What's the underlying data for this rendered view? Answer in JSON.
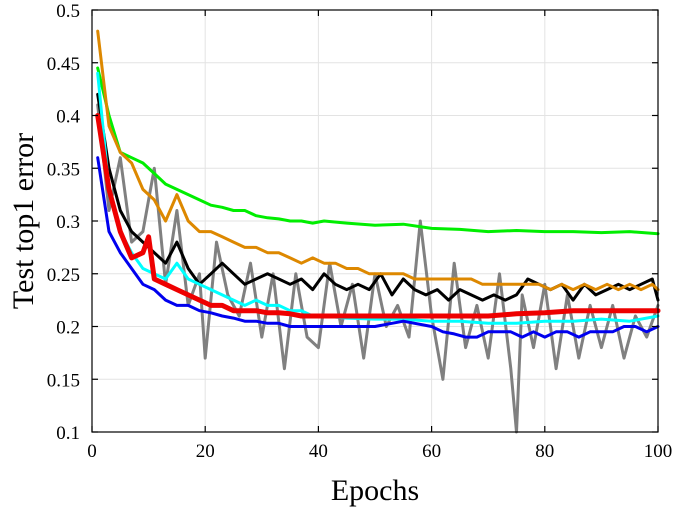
{
  "chart_data": {
    "type": "line",
    "title": "",
    "xlabel": "Epochs",
    "ylabel": "Test top1 error",
    "xlim": [
      0,
      100
    ],
    "ylim": [
      0.1,
      0.5
    ],
    "grid": true,
    "xticks": [
      0,
      20,
      40,
      60,
      80,
      100
    ],
    "xtick_labels": [
      "0",
      "20",
      "40",
      "60",
      "80",
      "100"
    ],
    "yticks": [
      0.1,
      0.15,
      0.2,
      0.25,
      0.3,
      0.35,
      0.4,
      0.45,
      0.5
    ],
    "ytick_labels": [
      "0.1",
      "0.15",
      "0.2",
      "0.25",
      "0.3",
      "0.35",
      "0.4",
      "0.45",
      "0.5"
    ],
    "series": [
      {
        "color": "#808080",
        "width": 3,
        "x": [
          1,
          3,
          5,
          7,
          9,
          11,
          13,
          15,
          17,
          19,
          20,
          22,
          24,
          26,
          28,
          30,
          32,
          34,
          36,
          38,
          40,
          42,
          44,
          46,
          48,
          50,
          52,
          54,
          56,
          58,
          60,
          62,
          64,
          66,
          68,
          70,
          72,
          74,
          75,
          76,
          78,
          80,
          82,
          84,
          86,
          88,
          90,
          92,
          94,
          96,
          98,
          100
        ],
        "y": [
          0.41,
          0.31,
          0.36,
          0.28,
          0.29,
          0.35,
          0.24,
          0.31,
          0.22,
          0.25,
          0.17,
          0.28,
          0.23,
          0.21,
          0.26,
          0.19,
          0.25,
          0.16,
          0.25,
          0.19,
          0.18,
          0.26,
          0.2,
          0.24,
          0.17,
          0.25,
          0.2,
          0.22,
          0.19,
          0.3,
          0.21,
          0.15,
          0.26,
          0.18,
          0.22,
          0.17,
          0.25,
          0.16,
          0.1,
          0.23,
          0.18,
          0.24,
          0.16,
          0.23,
          0.17,
          0.22,
          0.18,
          0.22,
          0.17,
          0.21,
          0.19,
          0.22
        ]
      },
      {
        "color": "#00ee00",
        "width": 3,
        "x": [
          1,
          3,
          5,
          7,
          9,
          11,
          13,
          15,
          17,
          19,
          21,
          23,
          25,
          27,
          29,
          31,
          33,
          35,
          37,
          39,
          41,
          45,
          50,
          55,
          60,
          65,
          70,
          75,
          80,
          85,
          90,
          95,
          100
        ],
        "y": [
          0.445,
          0.4,
          0.365,
          0.36,
          0.355,
          0.345,
          0.335,
          0.33,
          0.325,
          0.32,
          0.315,
          0.313,
          0.31,
          0.31,
          0.305,
          0.303,
          0.302,
          0.3,
          0.3,
          0.298,
          0.3,
          0.298,
          0.296,
          0.297,
          0.293,
          0.292,
          0.29,
          0.291,
          0.29,
          0.29,
          0.289,
          0.29,
          0.288
        ]
      },
      {
        "color": "#000000",
        "width": 3,
        "x": [
          1,
          3,
          5,
          7,
          9,
          11,
          13,
          15,
          17,
          19,
          21,
          23,
          25,
          27,
          29,
          31,
          33,
          35,
          37,
          39,
          41,
          43,
          45,
          47,
          49,
          51,
          53,
          55,
          57,
          59,
          61,
          63,
          65,
          67,
          69,
          71,
          73,
          75,
          77,
          79,
          81,
          83,
          85,
          87,
          89,
          91,
          93,
          95,
          97,
          99,
          100
        ],
        "y": [
          0.42,
          0.35,
          0.31,
          0.29,
          0.28,
          0.27,
          0.26,
          0.28,
          0.255,
          0.24,
          0.25,
          0.26,
          0.25,
          0.24,
          0.245,
          0.25,
          0.245,
          0.24,
          0.245,
          0.235,
          0.25,
          0.24,
          0.235,
          0.24,
          0.235,
          0.25,
          0.23,
          0.245,
          0.235,
          0.23,
          0.235,
          0.225,
          0.235,
          0.23,
          0.225,
          0.23,
          0.225,
          0.23,
          0.245,
          0.24,
          0.235,
          0.24,
          0.225,
          0.24,
          0.23,
          0.235,
          0.24,
          0.235,
          0.24,
          0.245,
          0.225
        ]
      },
      {
        "color": "#dd8800",
        "width": 3,
        "x": [
          1,
          3,
          5,
          7,
          9,
          11,
          13,
          15,
          17,
          19,
          21,
          23,
          25,
          27,
          29,
          31,
          33,
          35,
          37,
          39,
          41,
          43,
          45,
          47,
          49,
          51,
          53,
          55,
          57,
          59,
          61,
          63,
          65,
          67,
          69,
          71,
          73,
          75,
          77,
          79,
          81,
          83,
          85,
          87,
          89,
          91,
          93,
          95,
          97,
          99,
          100
        ],
        "y": [
          0.48,
          0.39,
          0.365,
          0.355,
          0.33,
          0.32,
          0.3,
          0.325,
          0.3,
          0.29,
          0.29,
          0.285,
          0.28,
          0.275,
          0.275,
          0.27,
          0.27,
          0.265,
          0.26,
          0.265,
          0.26,
          0.26,
          0.255,
          0.255,
          0.25,
          0.25,
          0.25,
          0.25,
          0.245,
          0.245,
          0.245,
          0.245,
          0.245,
          0.245,
          0.24,
          0.24,
          0.24,
          0.24,
          0.24,
          0.24,
          0.235,
          0.24,
          0.235,
          0.24,
          0.235,
          0.24,
          0.235,
          0.24,
          0.235,
          0.24,
          0.235
        ]
      },
      {
        "color": "#00ffff",
        "width": 3,
        "x": [
          1,
          3,
          5,
          7,
          9,
          11,
          13,
          15,
          17,
          19,
          21,
          23,
          25,
          27,
          29,
          31,
          33,
          35,
          37,
          39,
          41,
          45,
          50,
          55,
          60,
          65,
          70,
          75,
          80,
          85,
          90,
          95,
          100
        ],
        "y": [
          0.44,
          0.33,
          0.29,
          0.27,
          0.255,
          0.25,
          0.245,
          0.26,
          0.245,
          0.24,
          0.235,
          0.23,
          0.225,
          0.22,
          0.225,
          0.22,
          0.22,
          0.215,
          0.215,
          0.21,
          0.21,
          0.208,
          0.207,
          0.207,
          0.205,
          0.205,
          0.203,
          0.203,
          0.205,
          0.205,
          0.207,
          0.205,
          0.21
        ]
      },
      {
        "color": "#0000ee",
        "width": 3,
        "x": [
          1,
          3,
          5,
          7,
          9,
          11,
          13,
          15,
          17,
          19,
          21,
          23,
          25,
          27,
          29,
          31,
          33,
          35,
          37,
          39,
          41,
          45,
          50,
          55,
          60,
          62,
          64,
          66,
          68,
          70,
          72,
          74,
          76,
          78,
          80,
          82,
          84,
          86,
          88,
          90,
          92,
          94,
          96,
          98,
          100
        ],
        "y": [
          0.36,
          0.29,
          0.27,
          0.255,
          0.24,
          0.235,
          0.225,
          0.22,
          0.22,
          0.215,
          0.213,
          0.21,
          0.208,
          0.205,
          0.205,
          0.203,
          0.203,
          0.2,
          0.2,
          0.2,
          0.2,
          0.2,
          0.2,
          0.205,
          0.2,
          0.195,
          0.193,
          0.19,
          0.19,
          0.195,
          0.195,
          0.195,
          0.19,
          0.195,
          0.19,
          0.195,
          0.195,
          0.19,
          0.195,
          0.195,
          0.195,
          0.2,
          0.2,
          0.195,
          0.2
        ]
      },
      {
        "color": "#ee0000",
        "width": 5,
        "x": [
          1,
          3,
          5,
          7,
          9,
          10,
          11,
          13,
          15,
          17,
          19,
          21,
          23,
          25,
          27,
          29,
          31,
          33,
          35,
          37,
          39,
          41,
          45,
          50,
          55,
          60,
          65,
          70,
          75,
          80,
          85,
          90,
          95,
          100
        ],
        "y": [
          0.4,
          0.33,
          0.29,
          0.265,
          0.27,
          0.285,
          0.245,
          0.24,
          0.235,
          0.23,
          0.225,
          0.22,
          0.22,
          0.215,
          0.215,
          0.215,
          0.213,
          0.213,
          0.212,
          0.21,
          0.21,
          0.21,
          0.21,
          0.21,
          0.21,
          0.21,
          0.21,
          0.21,
          0.212,
          0.213,
          0.215,
          0.215,
          0.215,
          0.215
        ]
      }
    ]
  }
}
